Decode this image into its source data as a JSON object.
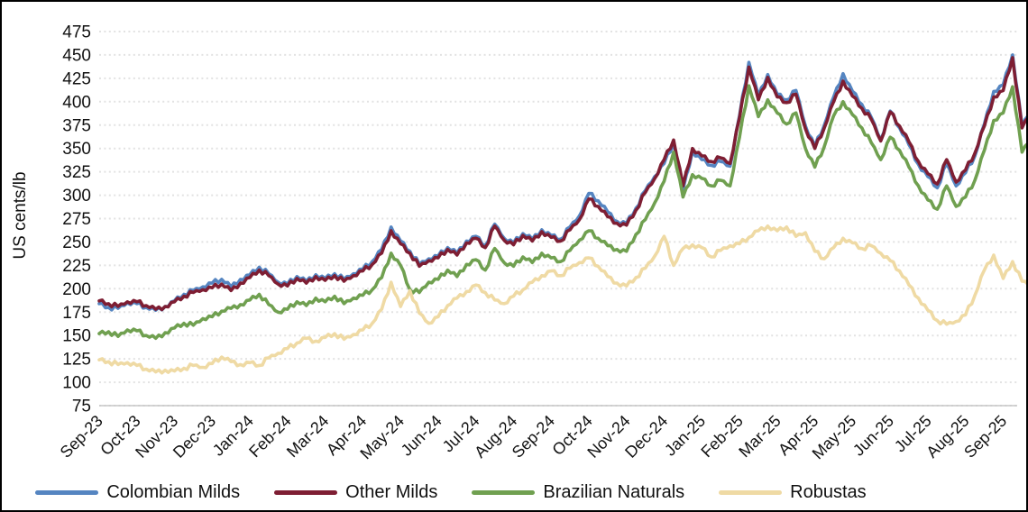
{
  "figure": {
    "y_axis_title": "US cents/lb",
    "background_color": "#ffffff",
    "border_color": "#000000",
    "gridline_color": "#e2e2e2",
    "axis_line_color": "#c6c6c6",
    "text_color": "#111111"
  },
  "chart_data": {
    "type": "line",
    "title": "",
    "xlabel": "",
    "ylabel": "US cents/lb",
    "ylim": [
      75,
      475
    ],
    "y_ticks": [
      475,
      450,
      425,
      400,
      375,
      350,
      325,
      300,
      275,
      250,
      225,
      200,
      175,
      150,
      125,
      100,
      75
    ],
    "grid": "horizontal dotted",
    "legend_position": "bottom",
    "x_tick_labels": [
      "Sep-23",
      "Oct-23",
      "Nov-23",
      "Dec-23",
      "Jan-24",
      "Feb-24",
      "Mar-24",
      "Apr-24",
      "May-24",
      "Jun-24",
      "Jul-24",
      "Aug-24",
      "Sep-24",
      "Oct-24",
      "Nov-24",
      "Dec-24",
      "Jan-25",
      "Feb-25",
      "Mar-25",
      "Apr-25",
      "May-25",
      "Jun-25",
      "Jul-25",
      "Aug-25",
      "Sep-25"
    ],
    "x_step_months": 0.25,
    "x_note": "values sampled approximately weekly from Sep-2023 through end of Sep-2025",
    "series": [
      {
        "name": "Colombian Milds",
        "color": "#5585c1",
        "values": [
          184,
          180,
          179,
          185,
          184,
          180,
          177,
          181,
          187,
          194,
          198,
          202,
          206,
          210,
          202,
          210,
          215,
          223,
          216,
          207,
          205,
          213,
          208,
          215,
          211,
          216,
          210,
          216,
          221,
          229,
          242,
          266,
          251,
          240,
          226,
          232,
          235,
          244,
          238,
          251,
          256,
          246,
          269,
          254,
          249,
          259,
          253,
          263,
          257,
          253,
          266,
          278,
          302,
          294,
          282,
          272,
          270,
          286,
          305,
          320,
          334,
          356,
          306,
          347,
          338,
          332,
          336,
          331,
          385,
          442,
          406,
          429,
          408,
          402,
          412,
          374,
          352,
          375,
          405,
          430,
          411,
          397,
          383,
          359,
          390,
          372,
          354,
          333,
          320,
          308,
          334,
          310,
          324,
          342,
          376,
          411,
          418,
          450,
          374,
          392
        ]
      },
      {
        "name": "Other Milds",
        "color": "#7e1e33",
        "values": [
          187,
          184,
          181,
          186,
          186,
          182,
          178,
          181,
          186,
          192,
          196,
          199,
          201,
          205,
          198,
          206,
          212,
          220,
          214,
          205,
          203,
          211,
          206,
          213,
          209,
          214,
          208,
          214,
          219,
          226,
          238,
          262,
          248,
          238,
          224,
          230,
          233,
          242,
          236,
          249,
          254,
          244,
          267,
          252,
          247,
          257,
          251,
          261,
          255,
          251,
          263,
          274,
          296,
          288,
          277,
          270,
          268,
          284,
          303,
          318,
          338,
          359,
          310,
          350,
          342,
          336,
          340,
          334,
          383,
          437,
          402,
          426,
          405,
          399,
          408,
          371,
          350,
          372,
          400,
          422,
          406,
          393,
          381,
          358,
          389,
          374,
          357,
          336,
          323,
          312,
          338,
          314,
          327,
          345,
          374,
          405,
          412,
          447,
          372,
          390
        ]
      },
      {
        "name": "Brazilian Naturals",
        "color": "#70a050",
        "values": [
          152,
          154,
          149,
          156,
          155,
          150,
          147,
          153,
          158,
          163,
          161,
          168,
          170,
          176,
          179,
          183,
          188,
          194,
          183,
          175,
          178,
          186,
          182,
          190,
          186,
          192,
          184,
          190,
          193,
          199,
          212,
          238,
          225,
          199,
          196,
          207,
          210,
          220,
          213,
          226,
          231,
          220,
          243,
          228,
          224,
          234,
          228,
          238,
          233,
          229,
          241,
          252,
          262,
          254,
          246,
          242,
          240,
          258,
          274,
          292,
          315,
          346,
          298,
          322,
          318,
          310,
          316,
          310,
          362,
          417,
          384,
          402,
          388,
          376,
          388,
          350,
          330,
          352,
          385,
          400,
          386,
          372,
          356,
          338,
          362,
          348,
          330,
          310,
          295,
          285,
          310,
          288,
          298,
          316,
          348,
          380,
          388,
          416,
          346,
          362
        ]
      },
      {
        "name": "Robustas",
        "color": "#efdaa4",
        "values": [
          124,
          122,
          119,
          121,
          118,
          114,
          111,
          113,
          112,
          115,
          118,
          116,
          120,
          127,
          122,
          119,
          121,
          118,
          126,
          131,
          136,
          142,
          147,
          144,
          148,
          152,
          146,
          151,
          156,
          163,
          178,
          207,
          181,
          198,
          174,
          163,
          170,
          182,
          190,
          197,
          204,
          196,
          188,
          184,
          192,
          199,
          207,
          214,
          219,
          214,
          222,
          228,
          233,
          224,
          213,
          206,
          203,
          212,
          222,
          235,
          256,
          225,
          243,
          247,
          244,
          234,
          241,
          246,
          248,
          255,
          262,
          267,
          262,
          266,
          256,
          260,
          240,
          232,
          244,
          254,
          249,
          243,
          246,
          238,
          230,
          219,
          204,
          190,
          177,
          166,
          162,
          165,
          172,
          193,
          220,
          236,
          211,
          229,
          208,
          204
        ]
      }
    ]
  }
}
